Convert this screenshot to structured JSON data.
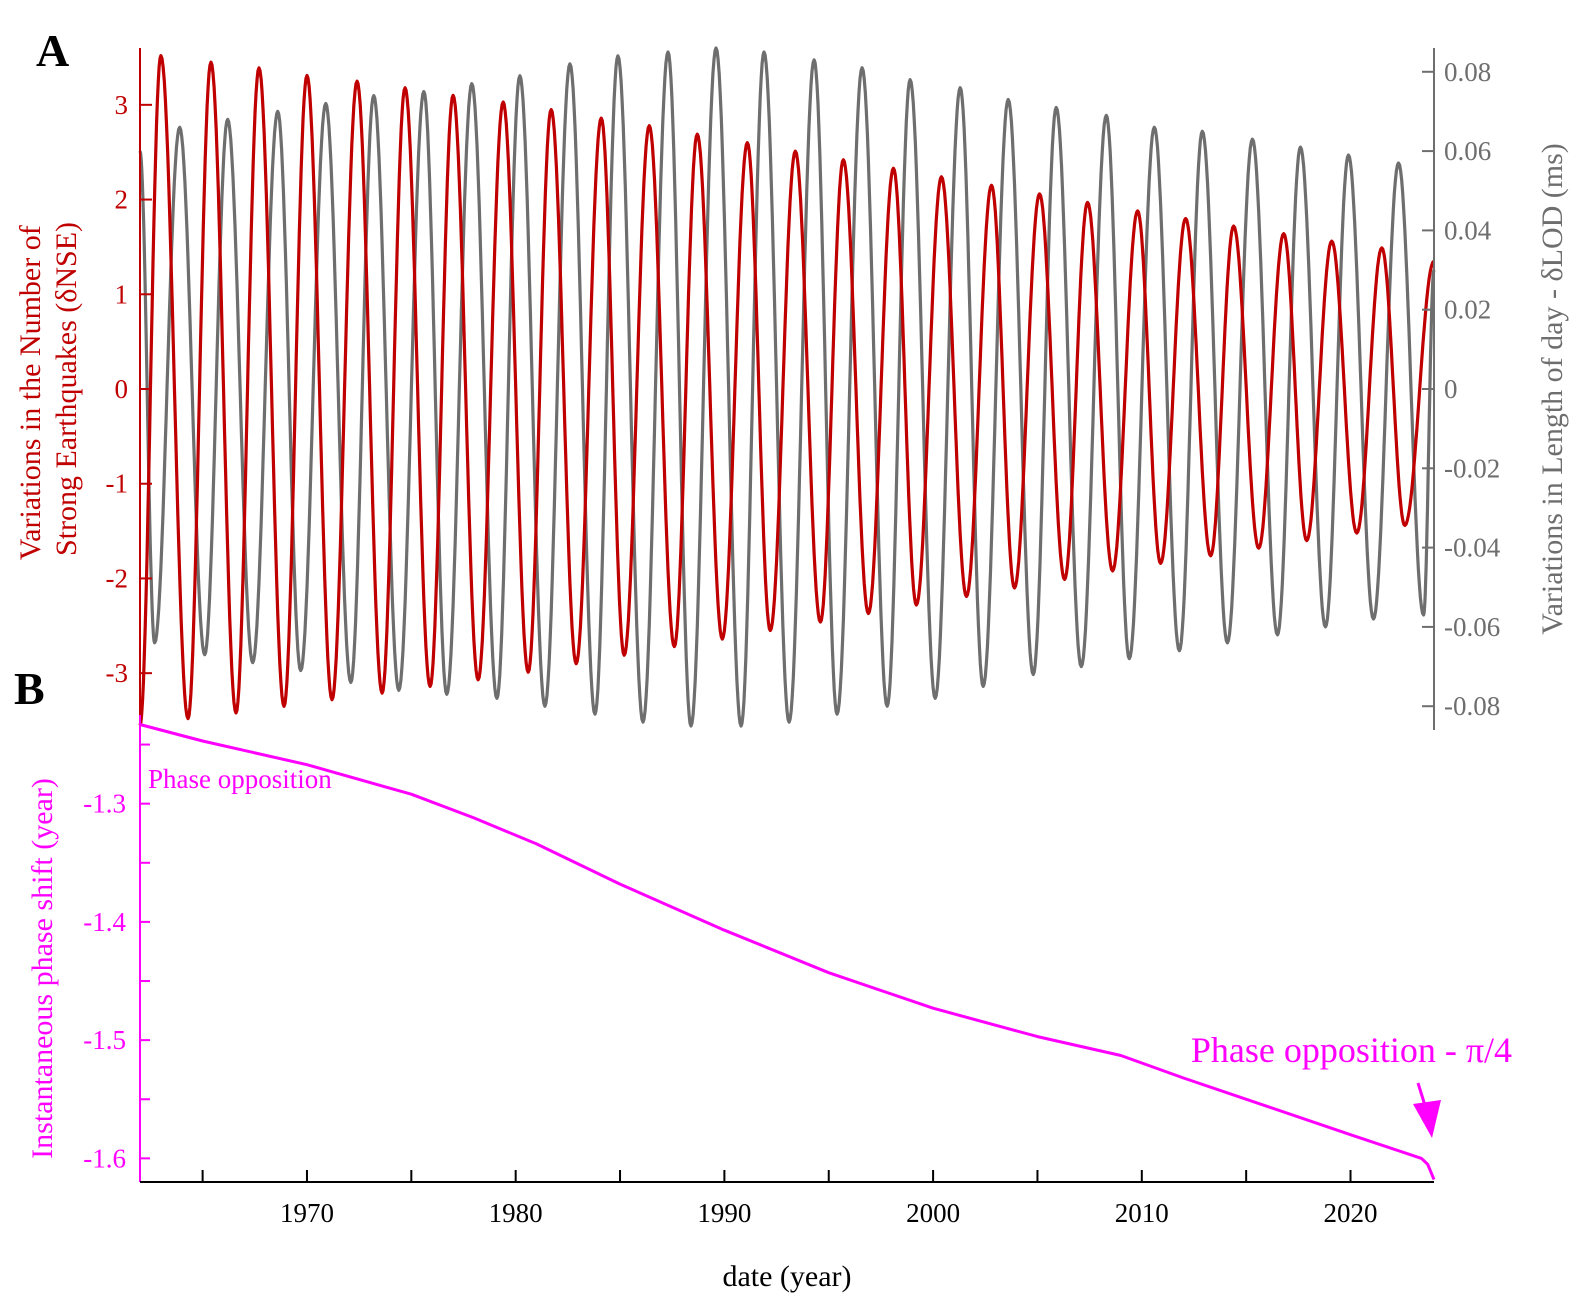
{
  "panels": {
    "a_label": "A",
    "b_label": "B"
  },
  "colors": {
    "nse": "#c00000",
    "lod": "#6e6e6e",
    "phase": "#ff00ff",
    "axis": "#000000"
  },
  "chart_data": [
    {
      "type": "line",
      "panel": "A",
      "xlim": [
        1962,
        2024
      ],
      "x_unit": "year",
      "left_axis": {
        "label_lines": [
          "Variations in the Number of",
          "Strong Earthquakes (δNSE)"
        ],
        "ylim": [
          -3.6,
          3.6
        ],
        "ticks": [
          "3",
          "2",
          "1",
          "0",
          "-1",
          "-2",
          "-3"
        ],
        "tick_values": [
          3,
          2,
          1,
          0,
          -1,
          -2,
          -3
        ]
      },
      "right_axis": {
        "label": "Variations in Length of day - δLOD (ms)",
        "ylim": [
          -0.086,
          0.086
        ],
        "ticks": [
          "0.08",
          "0.06",
          "0.04",
          "0.02",
          "0",
          "-0.02",
          "-0.04",
          "-0.06",
          "-0.08"
        ],
        "tick_values": [
          0.08,
          0.06,
          0.04,
          0.02,
          0,
          -0.02,
          -0.04,
          -0.06,
          -0.08
        ]
      },
      "series": [
        {
          "axis": "left",
          "color": "#c00000",
          "peaks": [
            [
              1963.0,
              3.52
            ],
            [
              1965.4,
              3.45
            ],
            [
              1967.7,
              3.39
            ],
            [
              1970.0,
              3.31
            ],
            [
              1972.4,
              3.25
            ],
            [
              1974.7,
              3.18
            ],
            [
              1977.0,
              3.1
            ],
            [
              1979.4,
              3.03
            ],
            [
              1981.7,
              2.95
            ],
            [
              1984.1,
              2.86
            ],
            [
              1986.4,
              2.78
            ],
            [
              1988.7,
              2.69
            ],
            [
              1991.1,
              2.6
            ],
            [
              1993.4,
              2.51
            ],
            [
              1995.7,
              2.42
            ],
            [
              1998.1,
              2.33
            ],
            [
              2000.4,
              2.24
            ],
            [
              2002.8,
              2.15
            ],
            [
              2005.1,
              2.06
            ],
            [
              2007.4,
              1.97
            ],
            [
              2009.8,
              1.88
            ],
            [
              2012.1,
              1.8
            ],
            [
              2014.4,
              1.72
            ],
            [
              2016.8,
              1.64
            ],
            [
              2019.1,
              1.56
            ],
            [
              2021.5,
              1.49
            ]
          ],
          "troughs": [
            [
              1962.0,
              -3.55
            ],
            [
              1964.3,
              -3.48
            ],
            [
              1966.6,
              -3.42
            ],
            [
              1968.9,
              -3.35
            ],
            [
              1971.2,
              -3.28
            ],
            [
              1973.6,
              -3.21
            ],
            [
              1975.9,
              -3.14
            ],
            [
              1978.2,
              -3.07
            ],
            [
              1980.6,
              -2.99
            ],
            [
              1982.9,
              -2.9
            ],
            [
              1985.2,
              -2.81
            ],
            [
              1987.6,
              -2.72
            ],
            [
              1989.9,
              -2.64
            ],
            [
              1992.2,
              -2.55
            ],
            [
              1994.6,
              -2.46
            ],
            [
              1996.9,
              -2.37
            ],
            [
              1999.2,
              -2.28
            ],
            [
              2001.6,
              -2.19
            ],
            [
              2003.9,
              -2.1
            ],
            [
              2006.3,
              -2.01
            ],
            [
              2008.6,
              -1.92
            ],
            [
              2010.9,
              -1.84
            ],
            [
              2013.3,
              -1.76
            ],
            [
              2015.6,
              -1.68
            ],
            [
              2017.9,
              -1.6
            ],
            [
              2020.3,
              -1.52
            ],
            [
              2022.6,
              -1.44
            ]
          ],
          "end": [
            2024.0,
            1.35
          ]
        },
        {
          "axis": "right",
          "color": "#6e6e6e",
          "start": [
            1962.0,
            0.06
          ],
          "troughs": [
            [
              1962.7,
              -0.064
            ],
            [
              1965.1,
              -0.067
            ],
            [
              1967.4,
              -0.069
            ],
            [
              1969.7,
              -0.071
            ],
            [
              1972.1,
              -0.074
            ],
            [
              1974.4,
              -0.076
            ],
            [
              1976.7,
              -0.077
            ],
            [
              1979.1,
              -0.078
            ],
            [
              1981.4,
              -0.08
            ],
            [
              1983.8,
              -0.082
            ],
            [
              1986.1,
              -0.084
            ],
            [
              1988.4,
              -0.085
            ],
            [
              1990.8,
              -0.085
            ],
            [
              1993.1,
              -0.084
            ],
            [
              1995.4,
              -0.082
            ],
            [
              1997.8,
              -0.08
            ],
            [
              2000.1,
              -0.078
            ],
            [
              2002.4,
              -0.075
            ],
            [
              2004.8,
              -0.072
            ],
            [
              2007.1,
              -0.07
            ],
            [
              2009.4,
              -0.068
            ],
            [
              2011.8,
              -0.066
            ],
            [
              2014.1,
              -0.064
            ],
            [
              2016.5,
              -0.062
            ],
            [
              2018.8,
              -0.06
            ],
            [
              2021.1,
              -0.058
            ],
            [
              2023.5,
              -0.057
            ]
          ],
          "peaks": [
            [
              1963.9,
              0.066
            ],
            [
              1966.2,
              0.068
            ],
            [
              1968.6,
              0.07
            ],
            [
              1970.9,
              0.072
            ],
            [
              1973.2,
              0.074
            ],
            [
              1975.6,
              0.075
            ],
            [
              1977.9,
              0.077
            ],
            [
              1980.2,
              0.079
            ],
            [
              1982.6,
              0.082
            ],
            [
              1984.9,
              0.084
            ],
            [
              1987.3,
              0.085
            ],
            [
              1989.6,
              0.086
            ],
            [
              1991.9,
              0.085
            ],
            [
              1994.3,
              0.083
            ],
            [
              1996.6,
              0.081
            ],
            [
              1998.9,
              0.078
            ],
            [
              2001.3,
              0.076
            ],
            [
              2003.6,
              0.073
            ],
            [
              2005.9,
              0.071
            ],
            [
              2008.3,
              0.069
            ],
            [
              2010.6,
              0.066
            ],
            [
              2012.9,
              0.065
            ],
            [
              2015.3,
              0.063
            ],
            [
              2017.6,
              0.061
            ],
            [
              2019.9,
              0.059
            ],
            [
              2022.3,
              0.057
            ]
          ],
          "end": [
            2024.0,
            0.03
          ]
        }
      ]
    },
    {
      "type": "line",
      "panel": "B",
      "xlabel": "date (year)",
      "ylabel": "Instantaneous phase shift (year)",
      "xlim": [
        1962,
        2024
      ],
      "ylim": [
        -1.62,
        -1.225
      ],
      "xticks": [
        "1970",
        "1980",
        "1990",
        "2000",
        "2010",
        "2020"
      ],
      "xtick_values": [
        1970,
        1980,
        1990,
        2000,
        2010,
        2020
      ],
      "yticks": [
        "-1.3",
        "-1.4",
        "-1.5",
        "-1.6"
      ],
      "ytick_values": [
        -1.3,
        -1.4,
        -1.5,
        -1.6
      ],
      "series": [
        {
          "color": "#ff00ff",
          "x": [
            1962.0,
            1965.0,
            1970.0,
            1975.0,
            1978.0,
            1981.0,
            1985.0,
            1990.0,
            1995.0,
            2000.0,
            2005.0,
            2009.0,
            2012.0,
            2016.0,
            2020.0,
            2023.4,
            2023.7,
            2024.0
          ],
          "y": [
            -1.233,
            -1.247,
            -1.267,
            -1.292,
            -1.312,
            -1.334,
            -1.368,
            -1.407,
            -1.443,
            -1.473,
            -1.497,
            -1.513,
            -1.532,
            -1.556,
            -1.58,
            -1.6,
            -1.605,
            -1.618
          ]
        }
      ],
      "annotations": [
        {
          "text": "Phase opposition",
          "at": [
            1962.3,
            -1.233
          ]
        },
        {
          "text": "Phase opposition - π/4",
          "at": [
            2024.0,
            -1.6
          ]
        }
      ]
    }
  ]
}
